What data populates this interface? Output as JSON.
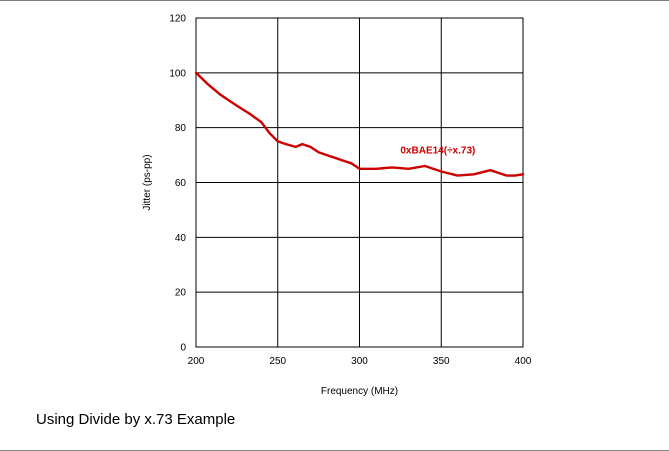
{
  "chart_data": {
    "type": "line",
    "title": "",
    "xlabel": "Frequency (MHz)",
    "ylabel": "Jitter (ps-pp)",
    "xlim": [
      200,
      400
    ],
    "ylim": [
      0,
      120
    ],
    "xticks": [
      200,
      250,
      300,
      350,
      400
    ],
    "yticks": [
      0,
      20,
      40,
      60,
      80,
      100,
      120
    ],
    "grid": true,
    "series": [
      {
        "color": "#cc0000",
        "x": [
          200,
          207,
          215,
          225,
          233,
          240,
          245,
          250,
          255,
          261,
          265,
          270,
          275,
          280,
          285,
          290,
          295,
          300,
          310,
          320,
          330,
          340,
          350,
          360,
          370,
          380,
          385,
          390,
          395,
          400
        ],
        "y": [
          100,
          96,
          92,
          88,
          85,
          82,
          78,
          75,
          74,
          73,
          74,
          73,
          71,
          70,
          69,
          68,
          67,
          65,
          65,
          65.5,
          65,
          66,
          64,
          62.5,
          63,
          64.5,
          63.5,
          62.5,
          62.5,
          63
        ]
      }
    ],
    "annotations": [
      {
        "text": "0xBAE14(÷x.73)",
        "x": 325,
        "y": 70.5,
        "color": "#cc0000"
      }
    ]
  },
  "caption": "Using Divide by x.73 Example"
}
